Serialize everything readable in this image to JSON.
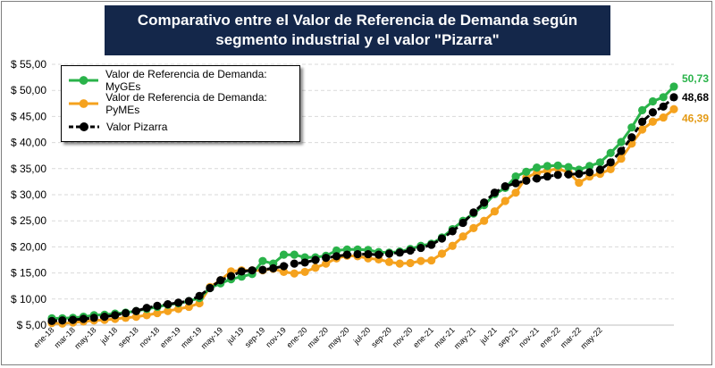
{
  "title": "Comparativo entre el Valor de Referencia de Demanda según segmento industrial y el valor \"Pizarra\"",
  "chart_data": {
    "type": "line",
    "title": "Comparativo entre el Valor de Referencia de Demanda según segmento industrial y el valor \"Pizarra\"",
    "xlabel": "",
    "ylabel": "",
    "ylim": [
      5,
      55
    ],
    "y_ticks": [
      "$ 5,00",
      "$ 10,00",
      "$ 15,00",
      "$ 20,00",
      "$ 25,00",
      "$ 30,00",
      "$ 35,00",
      "$ 40,00",
      "$ 45,00",
      "$ 50,00",
      "$ 55,00"
    ],
    "x_tick_labels": [
      "ene-18",
      "mar-18",
      "may-18",
      "jul-18",
      "sep-18",
      "nov-18",
      "ene-19",
      "mar-19",
      "may-19",
      "jul-19",
      "sep-19",
      "nov-19",
      "ene-20",
      "mar-20",
      "may-20",
      "jul-20",
      "sep-20",
      "nov-20",
      "ene-21",
      "mar-21",
      "may-21",
      "jul-21",
      "sep-21",
      "nov-21",
      "ene-22",
      "mar-22",
      "may-22"
    ],
    "grid": true,
    "legend_position": "top-left",
    "series": [
      {
        "name": "Valor de Referencia de Demanda: MyGEs",
        "color": "#2ab34a",
        "end_label": "50,73",
        "values": [
          6.3,
          6.3,
          6.4,
          6.6,
          6.9,
          7.0,
          7.2,
          7.4,
          7.7,
          8.1,
          8.5,
          8.9,
          9.2,
          9.6,
          10.2,
          12.1,
          13.0,
          13.8,
          14.3,
          14.8,
          17.3,
          16.8,
          18.5,
          18.5,
          18.0,
          18.0,
          18.3,
          19.3,
          19.5,
          19.5,
          19.4,
          19.0,
          18.9,
          19.1,
          19.6,
          20.2,
          20.6,
          21.8,
          23.4,
          25.0,
          26.4,
          28.0,
          30.1,
          31.3,
          33.5,
          34.4,
          35.2,
          35.5,
          35.6,
          35.3,
          34.8,
          35.5,
          36.2,
          38.0,
          40.1,
          42.9,
          46.2,
          47.9,
          48.7,
          50.73
        ]
      },
      {
        "name": "Valor de Referencia de Demanda: PyMEs",
        "color": "#f5a21e",
        "end_label": "46,39",
        "values": [
          5.4,
          5.3,
          5.5,
          5.7,
          5.9,
          6.0,
          6.2,
          6.4,
          6.6,
          6.9,
          7.3,
          7.7,
          8.1,
          8.5,
          9.2,
          12.3,
          13.6,
          15.3,
          15.5,
          15.5,
          15.5,
          15.8,
          15.2,
          14.9,
          15.2,
          16.0,
          16.8,
          17.8,
          18.3,
          18.2,
          17.8,
          17.6,
          17.1,
          16.8,
          16.9,
          17.3,
          17.4,
          18.7,
          20.2,
          22.0,
          23.6,
          25.0,
          26.8,
          28.8,
          30.4,
          33.3,
          34.2,
          34.6,
          35.0,
          34.3,
          32.3,
          33.5,
          34.0,
          34.9,
          36.9,
          39.8,
          42.5,
          44.0,
          44.8,
          46.39
        ]
      },
      {
        "name": "Valor Pizarra",
        "color": "#000000",
        "end_label": "48,68",
        "values": [
          5.8,
          5.9,
          6.0,
          6.2,
          6.4,
          6.6,
          6.9,
          7.3,
          7.7,
          8.3,
          8.7,
          9.0,
          9.3,
          9.6,
          10.6,
          12.1,
          13.6,
          14.4,
          15.3,
          15.5,
          15.6,
          15.9,
          16.3,
          16.8,
          17.0,
          17.5,
          17.9,
          18.2,
          18.5,
          18.6,
          18.6,
          18.5,
          18.7,
          18.9,
          19.3,
          19.8,
          20.4,
          21.6,
          23.0,
          24.6,
          26.6,
          28.5,
          30.4,
          31.6,
          32.2,
          32.7,
          33.1,
          33.5,
          33.8,
          33.9,
          34.0,
          34.3,
          34.8,
          36.2,
          38.4,
          41.0,
          44.0,
          45.8,
          46.9,
          48.68
        ]
      }
    ]
  }
}
